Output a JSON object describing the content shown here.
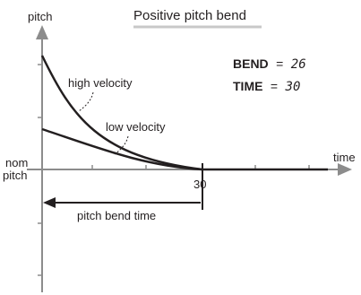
{
  "diagram": {
    "title": "Positive pitch bend",
    "y_axis_label": "pitch",
    "x_axis_label": "time",
    "nominal_label_line1": "nom",
    "nominal_label_line2": "pitch",
    "time_tick_value": "30",
    "curve_high_label": "high velocity",
    "curve_low_label": "low velocity",
    "span_label": "pitch bend time",
    "params": [
      {
        "key": "BEND",
        "eq": "=",
        "value": "26"
      },
      {
        "key": "TIME",
        "eq": "=",
        "value": "30"
      }
    ]
  }
}
